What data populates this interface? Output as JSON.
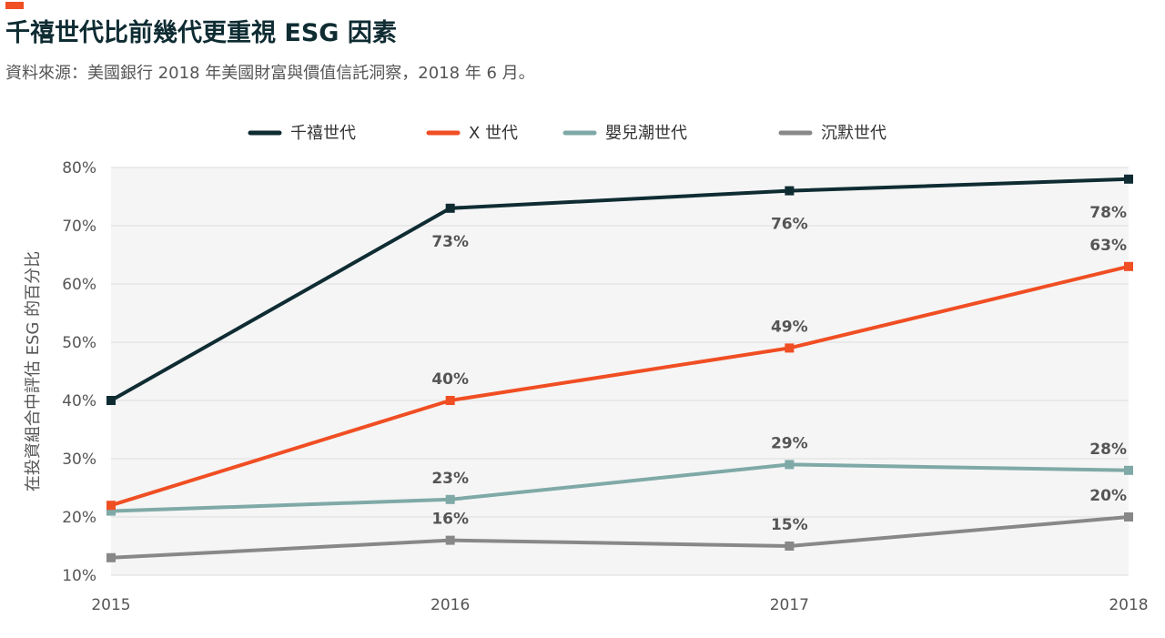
{
  "header": {
    "title": "千禧世代比前幾代更重視 ESG 因素",
    "subtitle": "資料來源：美國銀行 2018 年美國財富與價值信託洞察，2018 年 6 月。"
  },
  "colors": {
    "accent": "#f04e23",
    "grid": "#dddddd",
    "plot_bg": "#f5f5f5"
  },
  "chart_data": {
    "type": "line",
    "title": "千禧世代比前幾代更重視 ESG 因素",
    "subtitle": "資料來源：美國銀行 2018 年美國財富與價值信託洞察，2018 年 6 月。",
    "xlabel": "",
    "ylabel": "在投資組合中評估 ESG 的百分比",
    "x": [
      "2015",
      "2016",
      "2017",
      "2018"
    ],
    "ylim": [
      10,
      80
    ],
    "yticks": [
      10,
      20,
      30,
      40,
      50,
      60,
      70,
      80
    ],
    "ytick_labels": [
      "10%",
      "20%",
      "30%",
      "40%",
      "50%",
      "60%",
      "70%",
      "80%"
    ],
    "grid": true,
    "legend_position": "top",
    "series": [
      {
        "name": "千禧世代",
        "color": "#0f2c33",
        "values": [
          40,
          73,
          76,
          78
        ],
        "labels": [
          "",
          "73%",
          "76%",
          "78%"
        ],
        "label_pos": [
          "",
          "below",
          "below",
          "below"
        ]
      },
      {
        "name": "X 世代",
        "color": "#f04e23",
        "values": [
          22,
          40,
          49,
          63
        ],
        "labels": [
          "",
          "40%",
          "49%",
          "63%"
        ],
        "label_pos": [
          "",
          "above",
          "above",
          "above"
        ]
      },
      {
        "name": "嬰兒潮世代",
        "color": "#7fa9a7",
        "values": [
          21,
          23,
          29,
          28
        ],
        "labels": [
          "",
          "23%",
          "29%",
          "28%"
        ],
        "label_pos": [
          "",
          "above",
          "above",
          "above"
        ]
      },
      {
        "name": "沉默世代",
        "color": "#888888",
        "values": [
          13,
          16,
          15,
          20
        ],
        "labels": [
          "",
          "16%",
          "15%",
          "20%"
        ],
        "label_pos": [
          "",
          "above",
          "above",
          "above"
        ]
      }
    ]
  }
}
